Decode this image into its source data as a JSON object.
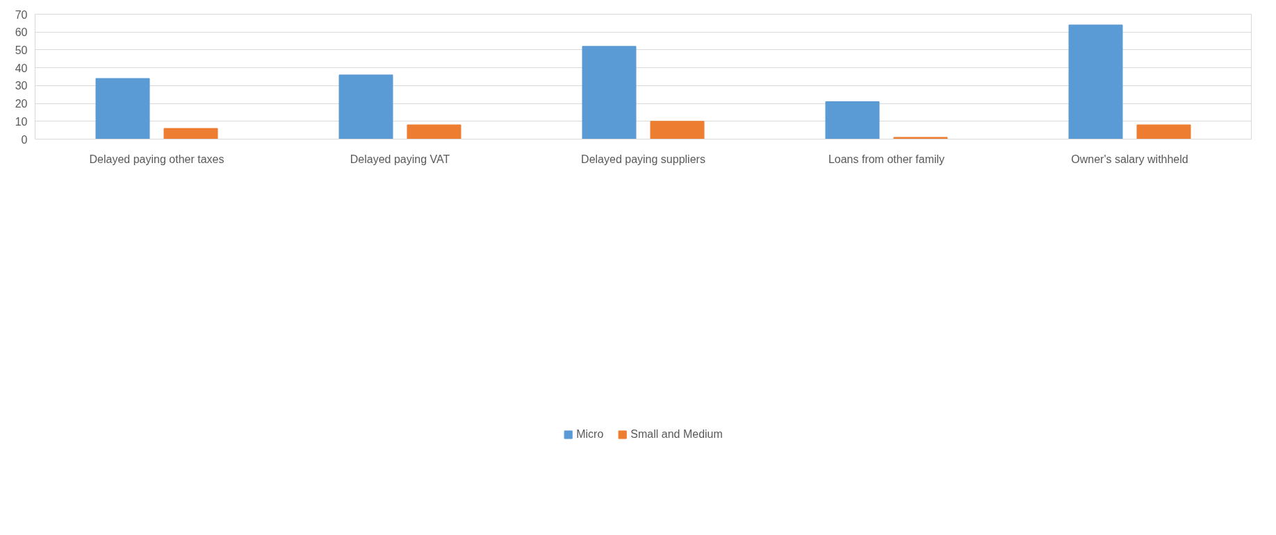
{
  "chart_data": {
    "type": "bar",
    "categories": [
      "Delayed paying other taxes",
      "Delayed paying VAT",
      "Delayed paying suppliers",
      "Loans from other family",
      "Owner's salary withheld"
    ],
    "series": [
      {
        "name": "Micro",
        "color": "#5b9bd5",
        "values": [
          34,
          36,
          52,
          21,
          64
        ]
      },
      {
        "name": "Small and Medium",
        "color": "#ed7d31",
        "values": [
          6,
          8,
          10,
          1,
          8
        ]
      }
    ],
    "ylim": [
      0,
      70
    ],
    "yticks": [
      0,
      10,
      20,
      30,
      40,
      50,
      60,
      70
    ],
    "grid": "y",
    "legend": "bottom"
  }
}
